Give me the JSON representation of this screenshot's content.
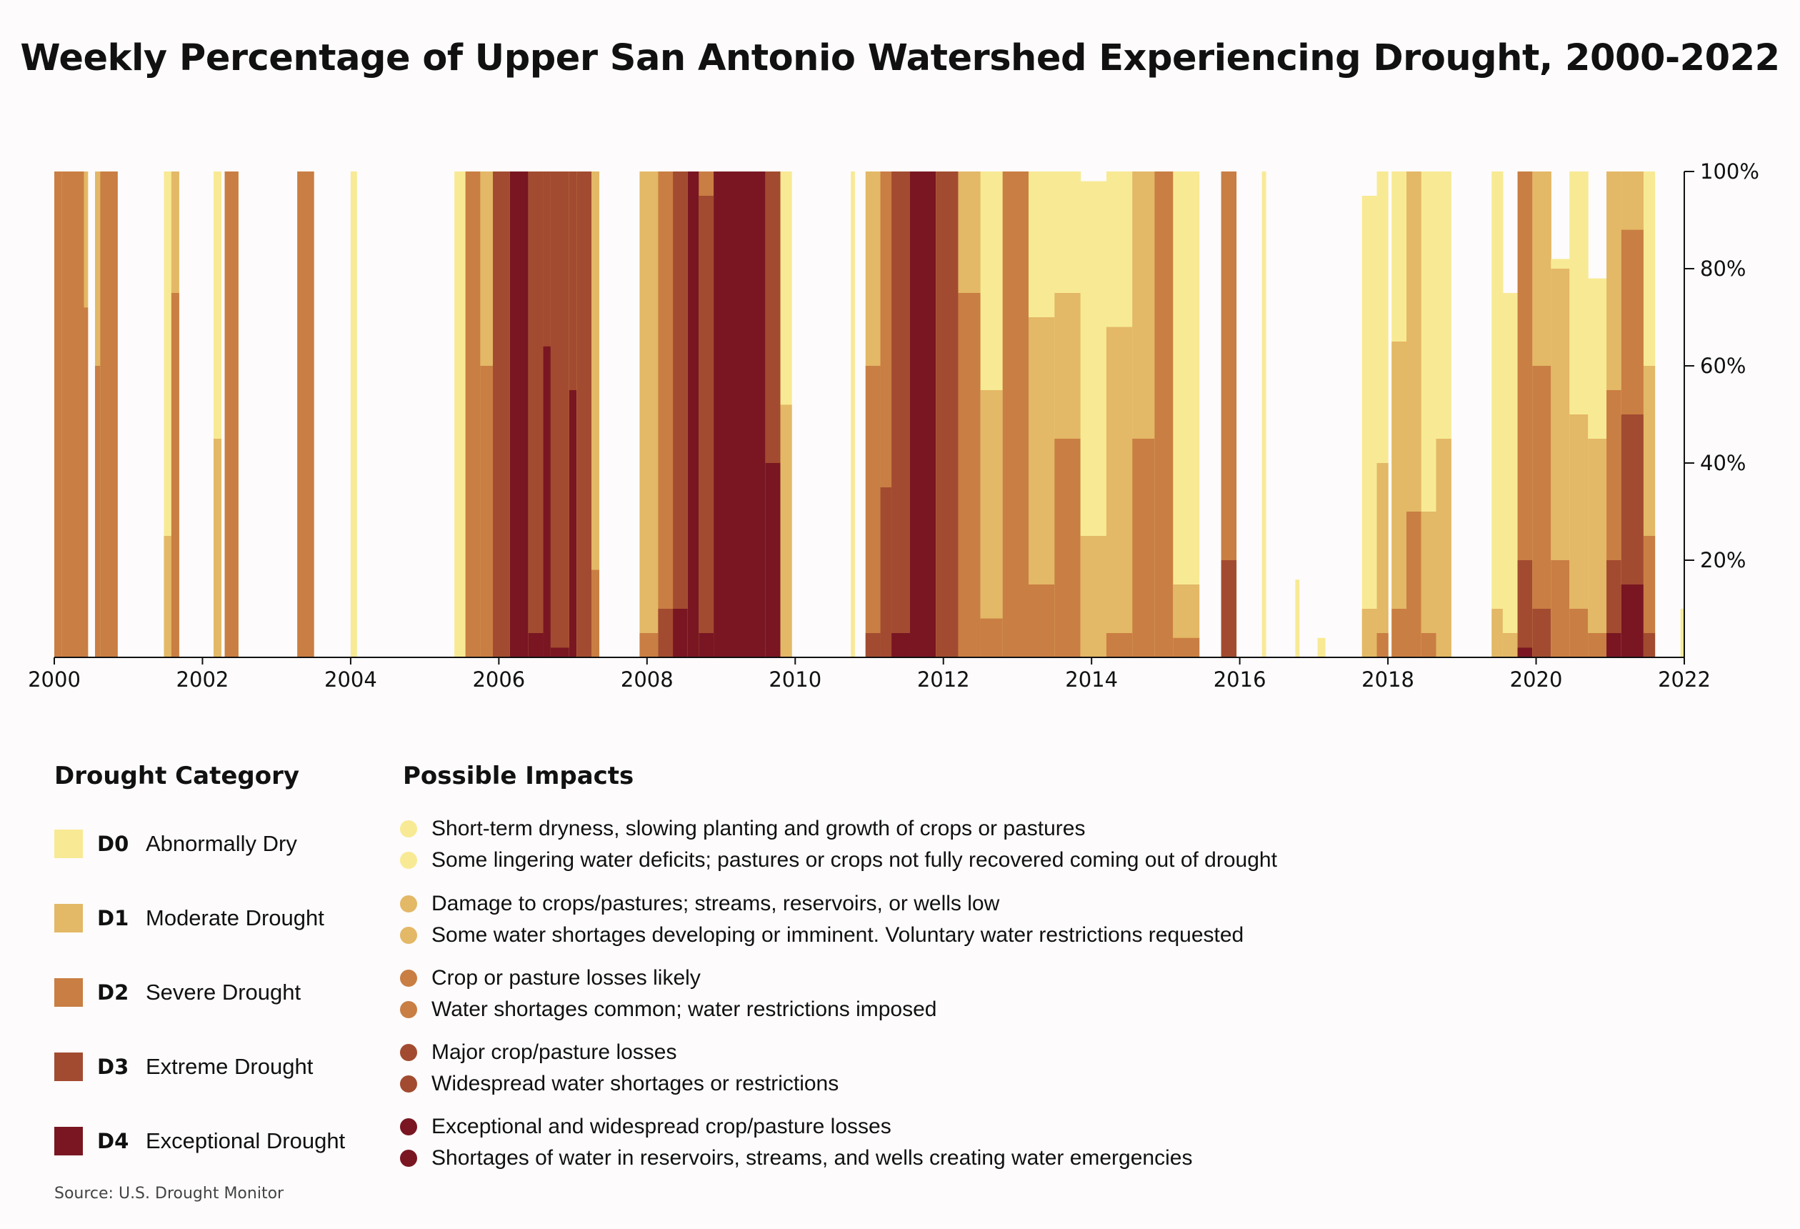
{
  "chart_data": {
    "type": "area",
    "title": "Weekly Percentage of Upper San Antonio Watershed Experiencing Drought, 2000-2022",
    "x_range": [
      2000,
      2022
    ],
    "y_range": [
      0,
      100
    ],
    "x_ticks": [
      "2000",
      "2002",
      "2004",
      "2006",
      "2008",
      "2010",
      "2012",
      "2014",
      "2016",
      "2018",
      "2020",
      "2022"
    ],
    "y_ticks": [
      "20%",
      "40%",
      "60%",
      "80%",
      "100%"
    ],
    "series_names": [
      "D0",
      "D1",
      "D2",
      "D3",
      "D4"
    ],
    "colors": {
      "D0": "#f8ea94",
      "D1": "#e3b866",
      "D2": "#c97e43",
      "D3": "#a24b30",
      "D4": "#791622"
    },
    "stack_note": "values are cumulative % of area at or above each category (D0 >= D1 >= D2 >= D3 >= D4)",
    "periods": [
      {
        "x0": 2000.0,
        "x1": 2000.1,
        "D0": 100,
        "D1": 100,
        "D2": 100,
        "D3": 0,
        "D4": 0
      },
      {
        "x0": 2000.1,
        "x1": 2000.4,
        "D0": 100,
        "D1": 100,
        "D2": 100,
        "D3": 0,
        "D4": 0
      },
      {
        "x0": 2000.4,
        "x1": 2000.45,
        "D0": 100,
        "D1": 100,
        "D2": 72,
        "D3": 0,
        "D4": 0
      },
      {
        "x0": 2000.55,
        "x1": 2000.62,
        "D0": 100,
        "D1": 100,
        "D2": 60,
        "D3": 0,
        "D4": 0
      },
      {
        "x0": 2000.62,
        "x1": 2000.85,
        "D0": 100,
        "D1": 100,
        "D2": 100,
        "D3": 0,
        "D4": 0
      },
      {
        "x0": 2001.48,
        "x1": 2001.58,
        "D0": 100,
        "D1": 25,
        "D2": 0,
        "D3": 0,
        "D4": 0
      },
      {
        "x0": 2001.58,
        "x1": 2001.68,
        "D0": 100,
        "D1": 100,
        "D2": 75,
        "D3": 0,
        "D4": 0
      },
      {
        "x0": 2002.15,
        "x1": 2002.25,
        "D0": 100,
        "D1": 45,
        "D2": 0,
        "D3": 0,
        "D4": 0
      },
      {
        "x0": 2002.3,
        "x1": 2002.48,
        "D0": 100,
        "D1": 100,
        "D2": 100,
        "D3": 0,
        "D4": 0
      },
      {
        "x0": 2003.28,
        "x1": 2003.5,
        "D0": 100,
        "D1": 100,
        "D2": 100,
        "D3": 0,
        "D4": 0
      },
      {
        "x0": 2004.0,
        "x1": 2004.08,
        "D0": 100,
        "D1": 0,
        "D2": 0,
        "D3": 0,
        "D4": 0
      },
      {
        "x0": 2005.4,
        "x1": 2005.55,
        "D0": 100,
        "D1": 0,
        "D2": 0,
        "D3": 0,
        "D4": 0
      },
      {
        "x0": 2005.55,
        "x1": 2005.75,
        "D0": 100,
        "D1": 100,
        "D2": 100,
        "D3": 0,
        "D4": 0
      },
      {
        "x0": 2005.75,
        "x1": 2005.92,
        "D0": 100,
        "D1": 100,
        "D2": 60,
        "D3": 0,
        "D4": 0
      },
      {
        "x0": 2005.92,
        "x1": 2006.15,
        "D0": 100,
        "D1": 100,
        "D2": 100,
        "D3": 100,
        "D4": 0
      },
      {
        "x0": 2006.15,
        "x1": 2006.4,
        "D0": 100,
        "D1": 100,
        "D2": 100,
        "D3": 100,
        "D4": 100
      },
      {
        "x0": 2006.4,
        "x1": 2006.6,
        "D0": 100,
        "D1": 100,
        "D2": 100,
        "D3": 100,
        "D4": 5
      },
      {
        "x0": 2006.6,
        "x1": 2006.7,
        "D0": 100,
        "D1": 100,
        "D2": 100,
        "D3": 100,
        "D4": 64
      },
      {
        "x0": 2006.7,
        "x1": 2006.95,
        "D0": 100,
        "D1": 100,
        "D2": 100,
        "D3": 100,
        "D4": 2
      },
      {
        "x0": 2006.95,
        "x1": 2007.05,
        "D0": 100,
        "D1": 100,
        "D2": 100,
        "D3": 100,
        "D4": 55
      },
      {
        "x0": 2007.05,
        "x1": 2007.25,
        "D0": 100,
        "D1": 100,
        "D2": 100,
        "D3": 100,
        "D4": 0
      },
      {
        "x0": 2007.25,
        "x1": 2007.35,
        "D0": 100,
        "D1": 100,
        "D2": 18,
        "D3": 0,
        "D4": 0
      },
      {
        "x0": 2007.9,
        "x1": 2008.15,
        "D0": 100,
        "D1": 100,
        "D2": 5,
        "D3": 0,
        "D4": 0
      },
      {
        "x0": 2008.15,
        "x1": 2008.35,
        "D0": 100,
        "D1": 100,
        "D2": 100,
        "D3": 10,
        "D4": 0
      },
      {
        "x0": 2008.35,
        "x1": 2008.55,
        "D0": 100,
        "D1": 100,
        "D2": 100,
        "D3": 100,
        "D4": 10
      },
      {
        "x0": 2008.55,
        "x1": 2008.7,
        "D0": 100,
        "D1": 100,
        "D2": 100,
        "D3": 100,
        "D4": 100
      },
      {
        "x0": 2008.7,
        "x1": 2008.9,
        "D0": 100,
        "D1": 100,
        "D2": 100,
        "D3": 95,
        "D4": 5
      },
      {
        "x0": 2008.9,
        "x1": 2009.6,
        "D0": 100,
        "D1": 100,
        "D2": 100,
        "D3": 100,
        "D4": 100
      },
      {
        "x0": 2009.6,
        "x1": 2009.8,
        "D0": 100,
        "D1": 100,
        "D2": 100,
        "D3": 100,
        "D4": 40
      },
      {
        "x0": 2009.8,
        "x1": 2009.95,
        "D0": 100,
        "D1": 52,
        "D2": 0,
        "D3": 0,
        "D4": 0
      },
      {
        "x0": 2010.75,
        "x1": 2010.8,
        "D0": 100,
        "D1": 0,
        "D2": 0,
        "D3": 0,
        "D4": 0
      },
      {
        "x0": 2010.95,
        "x1": 2011.15,
        "D0": 100,
        "D1": 100,
        "D2": 60,
        "D3": 5,
        "D4": 0
      },
      {
        "x0": 2011.15,
        "x1": 2011.3,
        "D0": 100,
        "D1": 100,
        "D2": 100,
        "D3": 35,
        "D4": 0
      },
      {
        "x0": 2011.3,
        "x1": 2011.55,
        "D0": 100,
        "D1": 100,
        "D2": 100,
        "D3": 100,
        "D4": 5
      },
      {
        "x0": 2011.55,
        "x1": 2011.9,
        "D0": 100,
        "D1": 100,
        "D2": 100,
        "D3": 100,
        "D4": 100
      },
      {
        "x0": 2011.9,
        "x1": 2012.2,
        "D0": 100,
        "D1": 100,
        "D2": 100,
        "D3": 100,
        "D4": 0
      },
      {
        "x0": 2012.2,
        "x1": 2012.5,
        "D0": 100,
        "D1": 100,
        "D2": 75,
        "D3": 0,
        "D4": 0
      },
      {
        "x0": 2012.5,
        "x1": 2012.8,
        "D0": 100,
        "D1": 55,
        "D2": 8,
        "D3": 0,
        "D4": 0
      },
      {
        "x0": 2012.8,
        "x1": 2013.15,
        "D0": 100,
        "D1": 100,
        "D2": 100,
        "D3": 0,
        "D4": 0
      },
      {
        "x0": 2013.15,
        "x1": 2013.5,
        "D0": 100,
        "D1": 70,
        "D2": 15,
        "D3": 0,
        "D4": 0
      },
      {
        "x0": 2013.5,
        "x1": 2013.85,
        "D0": 100,
        "D1": 75,
        "D2": 45,
        "D3": 0,
        "D4": 0
      },
      {
        "x0": 2013.85,
        "x1": 2014.2,
        "D0": 98,
        "D1": 25,
        "D2": 0,
        "D3": 0,
        "D4": 0
      },
      {
        "x0": 2014.2,
        "x1": 2014.55,
        "D0": 100,
        "D1": 68,
        "D2": 5,
        "D3": 0,
        "D4": 0
      },
      {
        "x0": 2014.55,
        "x1": 2014.85,
        "D0": 100,
        "D1": 100,
        "D2": 45,
        "D3": 0,
        "D4": 0
      },
      {
        "x0": 2014.85,
        "x1": 2015.1,
        "D0": 100,
        "D1": 100,
        "D2": 100,
        "D3": 0,
        "D4": 0
      },
      {
        "x0": 2015.1,
        "x1": 2015.45,
        "D0": 100,
        "D1": 15,
        "D2": 4,
        "D3": 0,
        "D4": 0
      },
      {
        "x0": 2015.75,
        "x1": 2015.95,
        "D0": 100,
        "D1": 100,
        "D2": 100,
        "D3": 20,
        "D4": 0
      },
      {
        "x0": 2016.3,
        "x1": 2016.35,
        "D0": 100,
        "D1": 0,
        "D2": 0,
        "D3": 0,
        "D4": 0
      },
      {
        "x0": 2016.75,
        "x1": 2016.8,
        "D0": 16,
        "D1": 0,
        "D2": 0,
        "D3": 0,
        "D4": 0
      },
      {
        "x0": 2017.05,
        "x1": 2017.15,
        "D0": 4,
        "D1": 0,
        "D2": 0,
        "D3": 0,
        "D4": 0
      },
      {
        "x0": 2017.65,
        "x1": 2017.85,
        "D0": 95,
        "D1": 10,
        "D2": 0,
        "D3": 0,
        "D4": 0
      },
      {
        "x0": 2017.85,
        "x1": 2018.0,
        "D0": 100,
        "D1": 40,
        "D2": 5,
        "D3": 0,
        "D4": 0
      },
      {
        "x0": 2018.05,
        "x1": 2018.25,
        "D0": 100,
        "D1": 65,
        "D2": 10,
        "D3": 0,
        "D4": 0
      },
      {
        "x0": 2018.25,
        "x1": 2018.45,
        "D0": 100,
        "D1": 100,
        "D2": 30,
        "D3": 0,
        "D4": 0
      },
      {
        "x0": 2018.45,
        "x1": 2018.65,
        "D0": 100,
        "D1": 30,
        "D2": 5,
        "D3": 0,
        "D4": 0
      },
      {
        "x0": 2018.65,
        "x1": 2018.85,
        "D0": 100,
        "D1": 45,
        "D2": 0,
        "D3": 0,
        "D4": 0
      },
      {
        "x0": 2019.4,
        "x1": 2019.55,
        "D0": 100,
        "D1": 10,
        "D2": 0,
        "D3": 0,
        "D4": 0
      },
      {
        "x0": 2019.55,
        "x1": 2019.75,
        "D0": 75,
        "D1": 5,
        "D2": 0,
        "D3": 0,
        "D4": 0
      },
      {
        "x0": 2019.75,
        "x1": 2019.95,
        "D0": 100,
        "D1": 100,
        "D2": 100,
        "D3": 20,
        "D4": 2
      },
      {
        "x0": 2019.95,
        "x1": 2020.2,
        "D0": 100,
        "D1": 100,
        "D2": 60,
        "D3": 10,
        "D4": 0
      },
      {
        "x0": 2020.2,
        "x1": 2020.45,
        "D0": 82,
        "D1": 80,
        "D2": 20,
        "D3": 0,
        "D4": 0
      },
      {
        "x0": 2020.45,
        "x1": 2020.7,
        "D0": 100,
        "D1": 50,
        "D2": 10,
        "D3": 0,
        "D4": 0
      },
      {
        "x0": 2020.7,
        "x1": 2020.95,
        "D0": 78,
        "D1": 45,
        "D2": 5,
        "D3": 0,
        "D4": 0
      },
      {
        "x0": 2020.95,
        "x1": 2021.15,
        "D0": 100,
        "D1": 100,
        "D2": 55,
        "D3": 20,
        "D4": 5
      },
      {
        "x0": 2021.15,
        "x1": 2021.45,
        "D0": 100,
        "D1": 100,
        "D2": 88,
        "D3": 50,
        "D4": 15
      },
      {
        "x0": 2021.45,
        "x1": 2021.6,
        "D0": 100,
        "D1": 60,
        "D2": 25,
        "D3": 5,
        "D4": 0
      },
      {
        "x0": 2021.95,
        "x1": 2022.0,
        "D0": 10,
        "D1": 0,
        "D2": 0,
        "D3": 0,
        "D4": 0
      }
    ]
  },
  "legend": {
    "category_heading": "Drought Category",
    "impacts_heading": "Possible Impacts",
    "categories": [
      {
        "code": "D0",
        "name": "Abnormally Dry",
        "color": "#f8ea94"
      },
      {
        "code": "D1",
        "name": "Moderate Drought",
        "color": "#e3b866"
      },
      {
        "code": "D2",
        "name": "Severe Drought",
        "color": "#c97e43"
      },
      {
        "code": "D3",
        "name": "Extreme Drought",
        "color": "#a24b30"
      },
      {
        "code": "D4",
        "name": "Exceptional Drought",
        "color": "#791622"
      }
    ],
    "impacts": [
      {
        "color": "#f8ea94",
        "lines": [
          "Short-term dryness, slowing planting and growth of crops or pastures",
          "Some lingering water deficits; pastures or crops not fully recovered coming out of drought"
        ]
      },
      {
        "color": "#e3b866",
        "lines": [
          "Damage to crops/pastures; streams, reservoirs, or wells low",
          "Some water shortages developing or imminent. Voluntary water restrictions requested"
        ]
      },
      {
        "color": "#c97e43",
        "lines": [
          "Crop or pasture losses likely",
          "Water shortages common; water restrictions imposed"
        ]
      },
      {
        "color": "#a24b30",
        "lines": [
          "Major crop/pasture losses",
          "Widespread water shortages or restrictions"
        ]
      },
      {
        "color": "#791622",
        "lines": [
          "Exceptional and widespread crop/pasture losses",
          "Shortages of water in reservoirs, streams, and wells creating water emergencies"
        ]
      }
    ]
  },
  "source": "Source: U.S. Drought Monitor"
}
